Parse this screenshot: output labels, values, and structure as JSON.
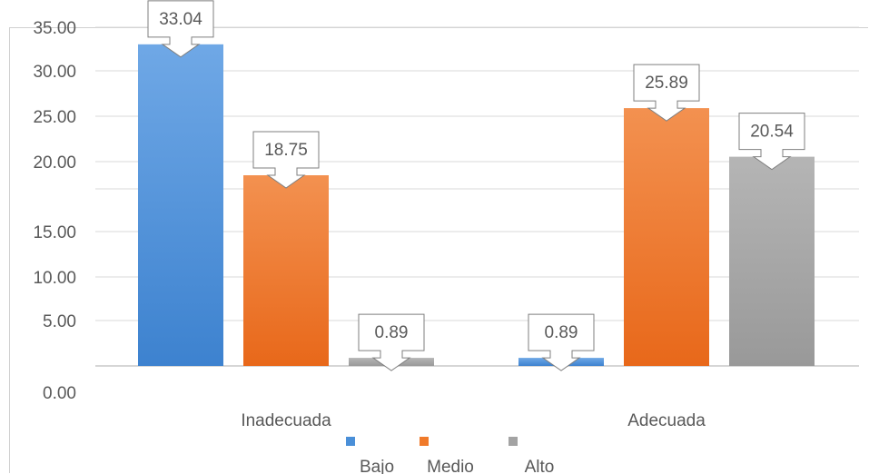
{
  "chart_data": {
    "type": "bar",
    "categories": [
      "Inadecuada",
      "Adecuada"
    ],
    "series": [
      {
        "name": "Bajo",
        "color": "#4a8fd8",
        "values": [
          33.04,
          0.89
        ]
      },
      {
        "name": "Medio",
        "color": "#f07a2a",
        "values": [
          18.75,
          25.89
        ]
      },
      {
        "name": "Alto",
        "color": "#a3a3a3",
        "values": [
          0.89,
          20.54
        ]
      }
    ],
    "y_ticks": [
      "0.00",
      "5.00",
      "10.00",
      "15.00",
      "20.00",
      "25.00",
      "30.00",
      "35.00"
    ],
    "ylim": [
      0,
      35
    ],
    "grid": true,
    "legend_position": "bottom",
    "data_labels": true
  }
}
